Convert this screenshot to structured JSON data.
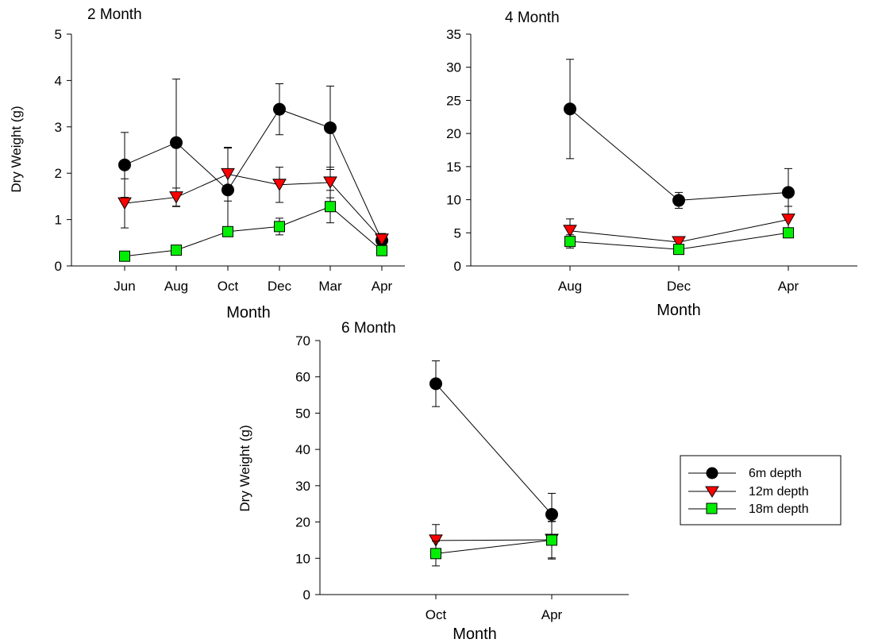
{
  "chart_data": [
    {
      "type": "line",
      "title": "2 Month",
      "xlabel": "Month",
      "ylabel": "Dry Weight (g)",
      "categories": [
        "Jun",
        "Aug",
        "Oct",
        "Dec",
        "Mar",
        "Apr"
      ],
      "ylim": [
        0,
        5
      ],
      "yticks": [
        0,
        1,
        2,
        3,
        4,
        5
      ],
      "grid": false,
      "series": [
        {
          "name": "6m depth",
          "values": [
            2.18,
            2.66,
            1.64,
            3.38,
            2.98,
            0.55
          ],
          "errors": [
            0.7,
            1.37,
            0.9,
            0.55,
            0.9,
            0.15
          ]
        },
        {
          "name": "12m depth",
          "values": [
            1.35,
            1.48,
            1.98,
            1.75,
            1.8,
            0.57
          ],
          "errors": [
            0.53,
            0.2,
            0.58,
            0.38,
            0.33,
            0.12
          ]
        },
        {
          "name": "18m depth",
          "values": [
            0.21,
            0.34,
            0.74,
            0.85,
            1.28,
            0.33
          ],
          "errors": [
            0.0,
            0.0,
            0.0,
            0.18,
            0.35,
            0.07
          ]
        }
      ]
    },
    {
      "type": "line",
      "title": "4 Month",
      "xlabel": "Month",
      "ylabel": "",
      "categories": [
        "Aug",
        "Dec",
        "Apr"
      ],
      "ylim": [
        0,
        35
      ],
      "yticks": [
        0,
        5,
        10,
        15,
        20,
        25,
        30,
        35
      ],
      "grid": false,
      "series": [
        {
          "name": "6m depth",
          "values": [
            23.7,
            9.9,
            11.1
          ],
          "errors": [
            7.5,
            1.2,
            3.6
          ]
        },
        {
          "name": "12m depth",
          "values": [
            5.3,
            3.6,
            7.0
          ],
          "errors": [
            1.8,
            0.8,
            2.0
          ]
        },
        {
          "name": "18m depth",
          "values": [
            3.7,
            2.5,
            5.0
          ],
          "errors": [
            1.0,
            0.5,
            0.0
          ]
        }
      ]
    },
    {
      "type": "line",
      "title": "6 Month",
      "xlabel": "Month",
      "ylabel": "Dry Weight (g)",
      "categories": [
        "Oct",
        "Apr"
      ],
      "ylim": [
        0,
        70
      ],
      "yticks": [
        0,
        10,
        20,
        30,
        40,
        50,
        60,
        70
      ],
      "grid": false,
      "legend_position": "right",
      "series": [
        {
          "name": "6m depth",
          "values": [
            58.1,
            22.1
          ],
          "errors": [
            6.3,
            5.8
          ]
        },
        {
          "name": "12m depth",
          "values": [
            14.9,
            15.1
          ],
          "errors": [
            4.4,
            5.0
          ]
        },
        {
          "name": "18m depth",
          "values": [
            11.3,
            15.0
          ],
          "errors": [
            3.4,
            5.2
          ]
        }
      ]
    }
  ],
  "legend": {
    "entries": [
      "6m depth",
      "12m depth",
      "18m depth"
    ]
  },
  "colors": {
    "6m depth": "#000000",
    "12m depth": "#ff0000",
    "18m depth": "#00ee00",
    "line": "#000000"
  },
  "markers": {
    "6m depth": "circle",
    "12m depth": "triangle-down",
    "18m depth": "square"
  }
}
